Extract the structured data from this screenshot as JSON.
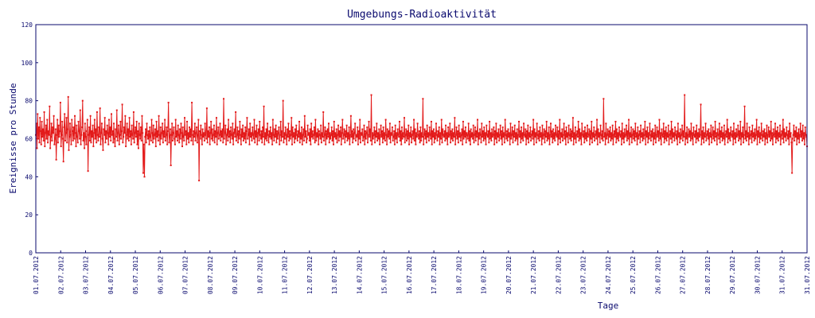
{
  "chart_data": {
    "type": "line",
    "title": "Umgebungs-Radioaktivität",
    "xlabel": "Tage",
    "ylabel": "Ereignisse pro Stunde",
    "ylim": [
      0,
      120
    ],
    "yticks": [
      "0",
      "20",
      "40",
      "60",
      "80",
      "100",
      "120"
    ],
    "xlim": [
      "2012-07-01T00:00",
      "2012-07-31T23:00"
    ],
    "xticks": [
      "01.07.2012",
      "02.07.2012",
      "03.07.2012",
      "04.07.2012",
      "05.07.2012",
      "06.07.2012",
      "07.07.2012",
      "08.07.2012",
      "09.07.2012",
      "10.07.2012",
      "11.07.2012",
      "12.07.2012",
      "13.07.2012",
      "14.07.2012",
      "15.07.2012",
      "16.07.2012",
      "17.07.2012",
      "18.07.2012",
      "19.07.2012",
      "20.07.2012",
      "21.07.2012",
      "22.07.2012",
      "23.07.2012",
      "24.07.2012",
      "25.07.2012",
      "26.07.2012",
      "27.07.2012",
      "28.07.2012",
      "29.07.2012",
      "30.07.2012",
      "31.07.2012",
      "31.07.2012"
    ],
    "grid": false,
    "colors": {
      "series": "#e31a1a",
      "axes": "#0a0a6e",
      "text": "#0a0a6e"
    },
    "sampling": "hourly",
    "start": "2012-07-01T00:00",
    "series": [
      {
        "values": [
          62,
          68,
          55,
          73,
          60,
          66,
          58,
          71,
          64,
          57,
          69,
          61,
          65,
          59,
          74,
          56,
          63,
          67,
          60,
          70,
          58,
          64,
          62,
          77,
          55,
          61,
          68,
          59,
          66,
          63,
          72,
          57,
          60,
          65,
          49,
          62,
          70,
          58,
          67,
          61,
          64,
          79,
          56,
          62,
          69,
          60,
          48,
          66,
          73,
          59,
          63,
          71,
          58,
          65,
          82,
          54,
          61,
          68,
          62,
          57,
          70,
          64,
          59,
          66,
          60,
          72,
          63,
          56,
          67,
          61,
          58,
          69,
          64,
          60,
          75,
          57,
          62,
          66,
          80,
          59,
          63,
          55,
          68,
          61,
          57,
          64,
          70,
          43,
          62,
          66,
          59,
          72,
          58,
          64,
          61,
          67,
          56,
          63,
          70,
          60,
          65,
          58,
          74,
          62,
          59,
          66,
          61,
          76,
          57,
          63,
          68,
          60,
          54,
          65,
          62,
          71,
          58,
          64,
          60,
          67,
          63,
          57,
          70,
          61,
          66,
          59,
          73,
          62,
          64,
          58,
          68,
          60,
          56,
          65,
          61,
          75,
          59,
          63,
          67,
          57,
          62,
          69,
          60,
          64,
          78,
          58,
          61,
          66,
          63,
          72,
          56,
          62,
          68,
          60,
          65,
          59,
          71,
          61,
          64,
          57,
          67,
          62,
          60,
          74,
          58,
          63,
          66,
          61,
          69,
          57,
          64,
          55,
          68,
          62,
          60,
          66,
          59,
          72,
          63,
          42,
          57,
          40,
          61,
          65,
          58,
          68,
          62,
          60,
          64,
          57,
          66,
          61,
          59,
          70,
          63,
          58,
          67,
          60,
          62,
          65,
          56,
          69,
          61,
          64,
          59,
          72,
          62,
          57,
          66,
          60,
          63,
          68,
          58,
          64,
          61,
          70,
          59,
          62,
          66,
          57,
          64,
          79,
          58,
          61,
          65,
          46,
          62,
          68,
          59,
          63,
          66,
          60,
          57,
          70,
          61,
          64,
          59,
          67,
          62,
          58,
          65,
          60,
          68,
          63,
          56,
          66,
          61,
          59,
          71,
          62,
          64,
          57,
          69,
          60,
          63,
          58,
          66,
          61,
          65,
          59,
          79,
          62,
          57,
          64,
          61,
          68,
          59,
          63,
          66,
          58,
          62,
          70,
          38,
          64,
          60,
          67,
          62,
          57,
          65,
          61,
          63,
          59,
          68,
          62,
          60,
          76,
          58,
          64,
          61,
          66,
          57,
          63,
          69,
          60,
          65,
          59,
          62,
          67,
          58,
          64,
          61,
          71,
          57,
          63,
          66,
          60,
          62,
          68,
          59,
          64,
          61,
          65,
          58,
          81,
          60,
          63,
          67,
          57,
          62,
          65,
          59,
          70,
          61,
          64,
          58,
          66,
          62,
          60,
          68,
          57,
          63,
          65,
          61,
          74,
          59,
          62,
          66,
          58,
          64,
          60,
          69,
          62,
          57,
          65,
          61,
          67,
          59,
          63,
          60,
          66,
          58,
          64,
          71,
          60,
          62,
          65,
          57,
          68,
          61,
          63,
          59,
          66,
          62,
          60,
          70,
          58,
          64,
          61,
          67,
          57,
          63,
          65,
          59,
          69,
          62,
          60,
          64,
          58,
          66,
          61,
          77,
          57,
          63,
          60,
          65,
          59,
          68,
          62,
          58,
          64,
          61,
          66,
          60,
          63,
          57,
          70,
          62,
          59,
          65,
          61,
          67,
          58,
          64,
          60,
          63,
          66,
          57,
          62,
          69,
          59,
          64,
          61,
          80,
          58,
          63,
          60,
          66,
          62,
          57,
          65,
          61,
          68,
          59,
          64,
          60,
          62,
          71,
          57,
          66,
          61,
          63,
          58,
          65,
          60,
          67,
          62,
          59,
          64,
          61,
          69,
          58,
          63,
          60,
          66,
          57,
          62,
          65,
          59,
          72,
          61,
          64,
          58,
          60,
          67,
          62,
          63,
          59,
          65,
          57,
          68,
          61,
          64,
          60,
          62,
          66,
          58,
          70,
          59,
          63,
          61,
          65,
          57,
          64,
          62,
          60,
          67,
          58,
          63,
          61,
          74,
          59,
          62,
          66,
          57,
          64,
          60,
          65,
          61,
          68,
          58,
          63,
          60,
          62,
          66,
          59,
          64,
          57,
          69,
          61,
          63,
          60,
          65,
          58,
          62,
          67,
          59,
          64,
          61,
          66,
          57,
          63,
          70,
          60,
          62,
          65,
          58,
          64,
          61,
          67,
          59,
          63,
          60,
          66,
          57,
          62,
          72,
          61,
          64,
          58,
          65,
          60,
          63,
          68,
          59,
          62,
          61,
          66,
          57,
          64,
          60,
          70,
          58,
          63,
          62,
          65,
          59,
          61,
          67,
          57,
          64,
          60,
          63,
          66,
          58,
          62,
          69,
          61,
          65,
          59,
          83,
          57,
          63,
          60,
          62,
          66,
          58,
          64,
          61,
          68,
          59,
          63,
          60,
          65,
          57,
          62,
          67,
          61,
          64,
          58,
          66,
          60,
          63,
          59,
          70,
          62,
          57,
          65,
          61,
          64,
          60,
          68,
          58,
          63,
          62,
          66,
          59,
          61,
          64,
          57,
          67,
          60,
          63,
          58,
          65,
          62,
          61,
          69,
          59,
          64,
          57,
          66,
          60,
          63,
          61,
          71,
          58,
          62,
          65,
          59,
          64,
          60,
          67,
          57,
          63,
          61,
          66,
          58,
          62,
          64,
          60,
          70,
          59,
          65,
          57,
          63,
          61,
          68,
          62,
          60,
          64,
          58,
          66,
          59,
          63,
          61,
          81,
          57,
          62,
          65,
          60,
          64,
          58,
          67,
          61,
          63,
          59,
          66,
          62,
          60,
          69,
          57,
          64,
          61,
          65,
          58,
          63,
          60,
          68,
          62,
          59,
          64,
          61,
          66,
          57,
          63,
          60,
          70,
          58,
          65,
          62,
          61,
          64,
          59,
          67,
          60,
          63,
          57,
          66,
          61,
          62,
          68,
          58,
          64,
          60,
          65,
          59,
          63,
          61,
          71,
          57,
          62,
          66,
          60,
          64,
          58,
          67,
          61,
          63,
          59,
          62,
          65,
          57,
          69,
          60,
          64,
          61,
          66,
          58,
          63,
          62,
          60,
          68,
          59,
          64,
          57,
          65,
          61,
          63,
          60,
          67,
          58,
          62,
          66,
          59,
          64,
          61,
          70,
          57,
          63,
          60,
          65,
          62,
          58,
          68,
          61,
          64,
          59,
          66,
          60,
          63,
          57,
          67,
          62,
          61,
          64,
          58,
          69,
          60,
          63,
          59,
          65,
          61,
          62,
          66,
          57,
          64,
          60,
          68,
          58,
          63,
          61,
          65,
          59,
          62,
          67,
          60,
          64,
          57,
          66,
          61,
          63,
          58,
          70,
          62,
          60,
          64,
          59,
          65,
          61,
          63,
          57,
          68,
          60,
          62,
          66,
          58,
          64,
          61,
          67,
          59,
          63,
          60,
          65,
          57,
          62,
          69,
          61,
          64,
          58,
          66,
          60,
          63,
          59,
          68,
          62,
          61,
          65,
          57,
          64,
          60,
          67,
          58,
          63,
          61,
          66,
          59,
          62,
          64,
          60,
          70,
          57,
          65,
          61,
          63,
          58,
          68,
          62,
          60,
          64,
          59,
          66,
          61,
          63,
          57,
          67,
          60,
          62,
          65,
          58,
          64,
          61,
          69,
          59,
          63,
          60,
          66,
          57,
          62,
          68,
          61,
          64,
          58,
          65,
          60,
          63,
          59,
          67,
          62,
          61,
          66,
          57,
          64,
          60,
          70,
          58,
          63,
          61,
          65,
          59,
          62,
          68,
          60,
          64,
          57,
          66,
          61,
          63,
          58,
          67,
          62,
          60,
          65,
          59,
          64,
          61,
          71,
          57,
          63,
          60,
          66,
          58,
          62,
          64,
          61,
          69,
          59,
          65,
          60,
          63,
          57,
          68,
          62,
          61,
          64,
          58,
          66,
          60,
          63,
          59,
          67,
          61,
          62,
          65,
          57,
          64,
          60,
          69,
          58,
          63,
          61,
          66,
          59,
          62,
          64,
          60,
          70,
          57,
          65,
          61,
          63,
          58,
          67,
          62,
          60,
          64,
          59,
          81,
          61,
          63,
          57,
          68,
          60,
          62,
          65,
          58,
          64,
          61,
          66,
          59,
          63,
          60,
          67,
          57,
          62,
          64,
          61,
          69,
          58,
          65,
          60,
          63,
          59,
          66,
          62,
          61,
          64,
          57,
          68,
          60,
          63,
          58,
          65,
          61,
          62,
          67,
          59,
          64,
          60,
          70,
          57,
          63,
          61,
          66,
          58,
          62,
          65,
          60,
          64,
          59,
          68,
          61,
          63,
          57,
          66,
          60,
          62,
          64,
          58,
          67,
          61,
          63,
          59,
          65,
          60,
          62,
          69,
          57,
          64,
          61,
          66,
          58,
          63,
          60,
          68,
          62,
          59,
          64,
          61,
          65,
          57,
          63,
          60,
          67,
          58,
          62,
          66,
          61,
          64,
          59,
          70,
          60,
          63,
          57,
          65,
          62,
          61,
          68,
          58,
          64,
          60,
          66,
          59,
          63,
          61,
          67,
          57,
          62,
          64,
          60,
          69,
          58,
          65,
          61,
          63,
          59,
          66,
          62,
          60,
          64,
          57,
          68,
          61,
          63,
          58,
          65,
          60,
          62,
          67,
          59,
          64,
          61,
          83,
          57,
          63,
          60,
          66,
          58,
          62,
          65,
          61,
          64,
          59,
          68,
          60,
          63,
          57,
          66,
          62,
          61,
          64,
          58,
          67,
          60,
          63,
          59,
          65,
          61,
          62,
          78,
          57,
          64,
          60,
          66,
          58,
          63,
          61,
          68,
          59,
          62,
          64,
          60,
          65,
          57,
          63,
          61,
          67,
          58,
          62,
          66,
          60,
          64,
          59,
          69,
          61,
          63,
          57,
          65,
          62,
          60,
          68,
          58,
          64,
          61,
          66,
          59,
          63,
          60,
          67,
          57,
          62,
          64,
          61,
          70,
          58,
          65,
          60,
          63,
          59,
          66,
          62,
          61,
          64,
          57,
          68,
          60,
          63,
          58,
          65,
          61,
          62,
          67,
          59,
          64,
          60,
          69,
          57,
          63,
          61,
          66,
          58,
          62,
          77,
          60,
          64,
          59,
          68,
          61,
          63,
          57,
          66,
          60,
          62,
          64,
          58,
          67,
          61,
          63,
          59,
          65,
          60,
          62,
          70,
          57,
          64,
          61,
          66,
          58,
          63,
          60,
          68,
          62,
          59,
          64,
          61,
          65,
          57,
          63,
          60,
          67,
          58,
          62,
          66,
          61,
          64,
          59,
          69,
          60,
          63,
          57,
          65,
          62,
          61,
          68,
          58,
          64,
          60,
          66,
          59,
          63,
          61,
          67,
          57,
          62,
          64,
          60,
          70,
          58,
          65,
          61,
          63,
          59,
          66,
          62,
          60,
          64,
          57,
          68,
          61,
          63,
          58,
          42,
          60,
          62,
          67,
          59,
          64,
          61,
          66,
          57,
          63,
          60,
          65,
          58,
          62,
          68,
          61,
          64,
          59,
          67,
          60,
          63,
          57,
          66,
          62,
          61,
          56
        ]
      }
    ]
  }
}
